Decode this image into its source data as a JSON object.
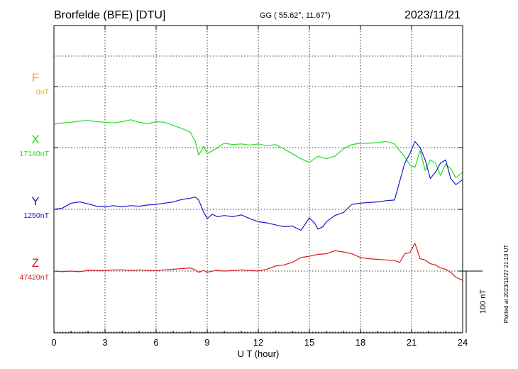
{
  "header": {
    "station": "Brorfelde (BFE)  [DTU]",
    "coords": "GG ( 55.62°,  11.67°)",
    "date": "2023/11/21"
  },
  "footer": {
    "plotted": "Plotted at 2023/11/27 21:13 UT",
    "scale_label": "100 nT"
  },
  "chart_data": {
    "type": "line",
    "xlabel": "U T (hour)",
    "xlim": [
      0,
      24
    ],
    "x_ticks": [
      "0",
      "3",
      "6",
      "9",
      "12",
      "15",
      "18",
      "21",
      "24"
    ],
    "grid": true,
    "scale_bar_nT": 100,
    "series": [
      {
        "name": "F",
        "baseline_label": "0nT",
        "color": "#f0b400",
        "x": [],
        "values": []
      },
      {
        "name": "X",
        "baseline_label": "17140nT",
        "color": "#22dd22",
        "x": [
          0,
          0.5,
          1,
          1.5,
          2,
          2.5,
          3,
          3.5,
          4,
          4.5,
          5,
          5.5,
          6,
          6.5,
          7,
          7.5,
          8,
          8.3,
          8.5,
          8.8,
          9,
          9.5,
          10,
          10.5,
          11,
          11.5,
          12,
          12.5,
          13,
          13.5,
          14,
          14.5,
          15,
          15.5,
          16,
          16.5,
          17,
          17.5,
          18,
          18.5,
          19,
          19.5,
          20,
          20.3,
          20.6,
          20.9,
          21.2,
          21.5,
          21.8,
          22.1,
          22.4,
          22.7,
          23,
          23.3,
          23.6,
          24
        ],
        "values": [
          38,
          40,
          41,
          43,
          44,
          42,
          41,
          40,
          42,
          45,
          41,
          39,
          42,
          41,
          36,
          31,
          25,
          10,
          -12,
          2,
          -10,
          -2,
          7,
          5,
          6,
          4,
          6,
          3,
          5,
          -2,
          -10,
          -18,
          -24,
          -14,
          -18,
          -14,
          -2,
          5,
          7,
          7,
          8,
          10,
          6,
          -5,
          -15,
          -28,
          -32,
          -5,
          -37,
          -20,
          -25,
          -45,
          -27,
          -34,
          -49,
          -40
        ]
      },
      {
        "name": "Y",
        "baseline_label": "1250nT",
        "color": "#1a1acc",
        "x": [
          0,
          0.5,
          1,
          1.5,
          2,
          2.5,
          3,
          3.5,
          4,
          4.5,
          5,
          5.5,
          6,
          6.5,
          7,
          7.5,
          8,
          8.3,
          8.5,
          8.8,
          9,
          9.3,
          9.6,
          10,
          10.5,
          11,
          11.5,
          12,
          12.5,
          13,
          13.5,
          14,
          14.5,
          15,
          15.3,
          15.5,
          15.8,
          16,
          16.5,
          17,
          17.5,
          18,
          18.5,
          19,
          19.5,
          20,
          20.3,
          20.6,
          20.9,
          21.2,
          21.5,
          21.8,
          22.1,
          22.4,
          22.7,
          23,
          23.3,
          23.6,
          24
        ],
        "values": [
          0,
          2,
          10,
          12,
          9,
          5,
          4,
          6,
          4,
          6,
          5,
          7,
          8,
          10,
          12,
          16,
          18,
          20,
          15,
          -5,
          -15,
          -8,
          -12,
          -10,
          -12,
          -9,
          -15,
          -20,
          -22,
          -25,
          -28,
          -27,
          -34,
          -14,
          -22,
          -32,
          -28,
          -20,
          -10,
          -5,
          8,
          10,
          11,
          12,
          14,
          15,
          45,
          75,
          90,
          110,
          100,
          80,
          50,
          60,
          75,
          80,
          50,
          40,
          48
        ]
      },
      {
        "name": "Z",
        "baseline_label": "47420nT",
        "color": "#dd1a1a",
        "x": [
          0,
          0.5,
          1,
          1.5,
          2,
          2.5,
          3,
          3.5,
          4,
          4.5,
          5,
          5.5,
          6,
          6.5,
          7,
          7.5,
          8,
          8.3,
          8.5,
          8.8,
          9,
          9.5,
          10,
          10.5,
          11,
          11.5,
          12,
          12.5,
          13,
          13.5,
          14,
          14.5,
          15,
          15.5,
          16,
          16.5,
          17,
          17.5,
          18,
          18.5,
          19,
          19.5,
          20,
          20.3,
          20.6,
          20.9,
          21.2,
          21.5,
          21.8,
          22.1,
          22.4,
          22.7,
          23,
          23.3,
          23.6,
          24
        ],
        "values": [
          0,
          -1,
          0,
          -1,
          1,
          1,
          1,
          2,
          2,
          1,
          2,
          1,
          1,
          2,
          3,
          4,
          5,
          2,
          -2,
          1,
          -2,
          1,
          0,
          1,
          2,
          1,
          0,
          3,
          8,
          10,
          14,
          22,
          24,
          27,
          28,
          33,
          31,
          28,
          22,
          20,
          19,
          18,
          17,
          14,
          28,
          30,
          45,
          20,
          18,
          12,
          10,
          5,
          3,
          -2,
          -10,
          -15
        ]
      }
    ]
  }
}
